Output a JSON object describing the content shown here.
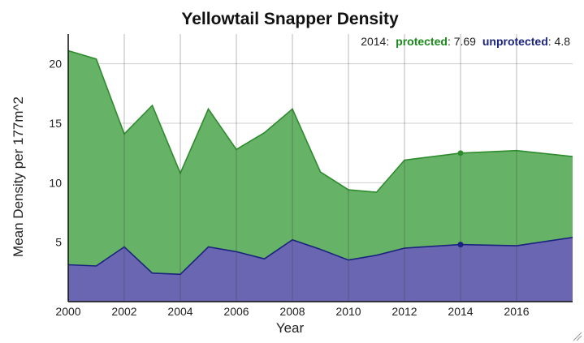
{
  "chart_data": {
    "type": "area",
    "title": "Yellowtail Snapper Density",
    "xlabel": "Year",
    "ylabel": "Mean Density per 177m^2",
    "xlim": [
      2000,
      2018
    ],
    "ylim": [
      0,
      22.5
    ],
    "x_ticks": [
      "2000",
      "2002",
      "2004",
      "2006",
      "2008",
      "2010",
      "2012",
      "2014",
      "2016"
    ],
    "y_ticks": [
      "5",
      "10",
      "15",
      "20"
    ],
    "grid": true,
    "stacked": true,
    "x": [
      2000,
      2001,
      2002,
      2003,
      2004,
      2005,
      2006,
      2007,
      2008,
      2009,
      2010,
      2011,
      2012,
      2014,
      2016,
      2018
    ],
    "series": [
      {
        "name": "unprotected",
        "color": "#1a237e",
        "fill": "#6a66b2",
        "values": [
          3.1,
          3.0,
          4.6,
          2.4,
          2.3,
          4.6,
          4.2,
          3.6,
          5.2,
          4.4,
          3.5,
          3.9,
          4.5,
          4.8,
          4.7,
          5.4
        ]
      },
      {
        "name": "protected",
        "color": "#2e8b2e",
        "fill": "#66b266",
        "values": [
          18.0,
          17.4,
          9.5,
          14.1,
          8.5,
          11.6,
          8.6,
          10.6,
          11.0,
          6.5,
          5.9,
          5.3,
          7.4,
          7.69,
          8.0,
          6.8
        ]
      }
    ],
    "readout": {
      "year": "2014:",
      "protected_label": "protected",
      "protected_value": ": 7.69",
      "unprotected_label": "unprotected",
      "unprotected_value": ": 4.8"
    },
    "highlight_year": 2014
  }
}
